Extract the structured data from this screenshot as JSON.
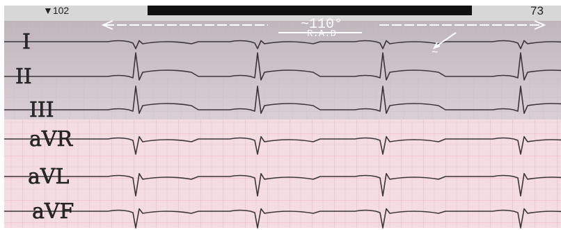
{
  "status_bar": {
    "left": "▼102",
    "right": "73"
  },
  "annotation": {
    "axis": "~110°",
    "label": "R.A.D",
    "mark": "~"
  },
  "leads": [
    "I",
    "II",
    "III",
    "aVR",
    "aVL",
    "aVF"
  ]
}
